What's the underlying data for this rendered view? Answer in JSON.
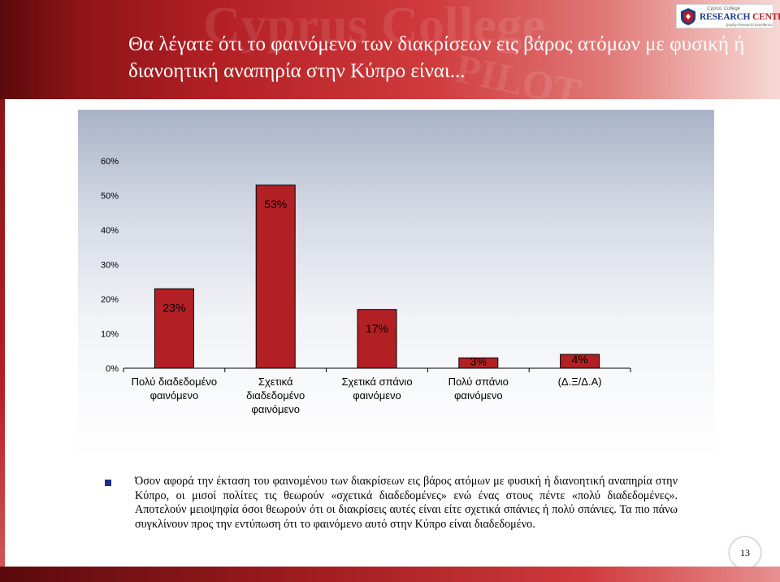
{
  "slide": {
    "title": "Θα λέγατε ότι το φαινόμενο των διακρίσεων εις βάρος ατόμων με φυσική ή διανοητική αναπηρία στην Κύπρο είναι...",
    "logo": {
      "line1": "Cyprus College",
      "line2_a": "RESEARCH",
      "line2_b": "CENTER",
      "line3": "Quality Research Excellence"
    },
    "body_text": "Όσον αφορά την έκταση του φαινομένου των διακρίσεων εις βάρος ατόμων με φυσική ή διανοητική αναπηρία στην Κύπρο, οι μισοί πολίτες τις θεωρούν «σχετικά διαδεδομένες» ενώ ένας στους πέντε «πολύ διαδεδομένες». Αποτελούν μειοψηφία όσοι θεωρούν ότι οι διακρίσεις αυτές είναι είτε σχετικά σπάνιες ή πολύ σπάνιες. Τα πιο πάνω συγκλίνουν προς την εντύπωση ότι το φαινόμενο αυτό στην Κύπρο είναι διαδεδομένο.",
    "page_number": "13"
  },
  "colors": {
    "header_red": "#b32024",
    "bar_fill": "#b32024",
    "bullet": "#1f2e8a"
  },
  "chart_data": {
    "type": "bar",
    "categories": [
      [
        "Πολύ διαδεδομένο",
        "φαινόμενο"
      ],
      [
        "Σχετικά",
        "διαδεδομένο",
        "φαινόμενο"
      ],
      [
        "Σχετικά σπάνιο",
        "φαινόμενο"
      ],
      [
        "Πολύ σπάνιο",
        "φαινόμενο"
      ],
      [
        "(Δ.Ξ/Δ.Α)"
      ]
    ],
    "values": [
      23,
      53,
      17,
      3,
      4
    ],
    "data_labels": [
      "23%",
      "53%",
      "17%",
      "3%",
      "4%"
    ],
    "ylim": [
      0,
      60
    ],
    "yticks": [
      0,
      10,
      20,
      30,
      40,
      50,
      60
    ],
    "ytick_labels": [
      "0%",
      "10%",
      "20%",
      "30%",
      "40%",
      "50%",
      "60%"
    ],
    "grid": false,
    "legend": "none"
  }
}
